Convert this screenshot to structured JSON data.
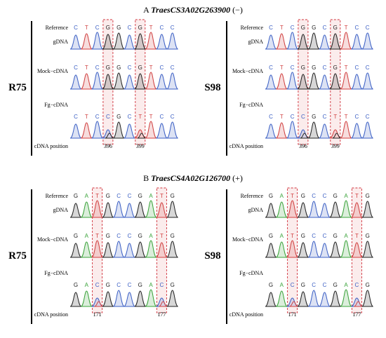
{
  "colors": {
    "A": "#3aa33a",
    "C": "#3b5fc4",
    "G": "#222222",
    "T": "#d04040",
    "highlight": "#d0303a"
  },
  "panels": [
    {
      "letter": "A",
      "gene": "TraesCS3A02G263900",
      "sign": "(−)",
      "samples": [
        {
          "name": "R75",
          "tracks": [
            {
              "label": "Reference",
              "seq": [
                "C",
                "T",
                "C",
                "G",
                "G",
                "C",
                "G",
                "T",
                "C",
                "C"
              ],
              "type": "ref"
            },
            {
              "label": "gDNA",
              "seq": [
                "C",
                "T",
                "C",
                "G",
                "G",
                "C",
                "G",
                "T",
                "C",
                "C"
              ],
              "type": "chrom"
            },
            {
              "label": "Mock−cDNA",
              "seq": [
                "C",
                "T",
                "C",
                "G",
                "G",
                "C",
                "G",
                "T",
                "C",
                "C"
              ],
              "type": "chrom"
            },
            {
              "label": "Fg−cDNA",
              "seq": [
                "C",
                "T",
                "C",
                "C",
                "G",
                "C",
                "T",
                "T",
                "C",
                "C"
              ],
              "type": "chrom"
            }
          ],
          "positions": [
            "396",
            "399"
          ]
        },
        {
          "name": "S98",
          "tracks": [
            {
              "label": "Reference",
              "seq": [
                "C",
                "T",
                "C",
                "G",
                "G",
                "C",
                "G",
                "T",
                "C",
                "C"
              ],
              "type": "ref"
            },
            {
              "label": "gDNA",
              "seq": [
                "C",
                "T",
                "C",
                "G",
                "G",
                "C",
                "G",
                "T",
                "C",
                "C"
              ],
              "type": "chrom"
            },
            {
              "label": "Mock−cDNA",
              "seq": [
                "C",
                "T",
                "C",
                "G",
                "G",
                "C",
                "G",
                "T",
                "C",
                "C"
              ],
              "type": "chrom"
            },
            {
              "label": "Fg−cDNA",
              "seq": [
                "C",
                "T",
                "C",
                "C",
                "G",
                "C",
                "T",
                "T",
                "C",
                "C"
              ],
              "type": "chrom"
            }
          ],
          "positions": [
            "396",
            "399"
          ]
        }
      ],
      "position_label": "cDNA position"
    },
    {
      "letter": "B",
      "gene": "TraesCS4A02G126700",
      "sign": "(+)",
      "samples": [
        {
          "name": "R75",
          "tracks": [
            {
              "label": "Reference",
              "seq": [
                "G",
                "A",
                "T",
                "G",
                "C",
                "C",
                "G",
                "A",
                "T",
                "G"
              ],
              "type": "ref"
            },
            {
              "label": "gDNA",
              "seq": [
                "G",
                "A",
                "T",
                "G",
                "C",
                "C",
                "G",
                "A",
                "T",
                "G"
              ],
              "type": "chrom"
            },
            {
              "label": "Mock−cDNA",
              "seq": [
                "G",
                "A",
                "T",
                "G",
                "C",
                "C",
                "G",
                "A",
                "T",
                "G"
              ],
              "type": "chrom"
            },
            {
              "label": "Fg−cDNA",
              "seq": [
                "G",
                "A",
                "C",
                "G",
                "C",
                "C",
                "G",
                "A",
                "C",
                "G"
              ],
              "type": "chrom"
            }
          ],
          "positions": [
            "171",
            "177"
          ]
        },
        {
          "name": "S98",
          "tracks": [
            {
              "label": "Reference",
              "seq": [
                "G",
                "A",
                "T",
                "G",
                "C",
                "C",
                "G",
                "A",
                "T",
                "G"
              ],
              "type": "ref"
            },
            {
              "label": "gDNA",
              "seq": [
                "G",
                "A",
                "T",
                "G",
                "C",
                "C",
                "G",
                "A",
                "T",
                "G"
              ],
              "type": "chrom"
            },
            {
              "label": "Mock−cDNA",
              "seq": [
                "G",
                "A",
                "T",
                "G",
                "C",
                "C",
                "G",
                "A",
                "T",
                "G"
              ],
              "type": "chrom"
            },
            {
              "label": "Fg−cDNA",
              "seq": [
                "G",
                "A",
                "C",
                "G",
                "C",
                "C",
                "G",
                "A",
                "C",
                "G"
              ],
              "type": "chrom"
            }
          ],
          "positions": [
            "171",
            "177"
          ]
        }
      ],
      "position_label": "cDNA position"
    }
  ]
}
